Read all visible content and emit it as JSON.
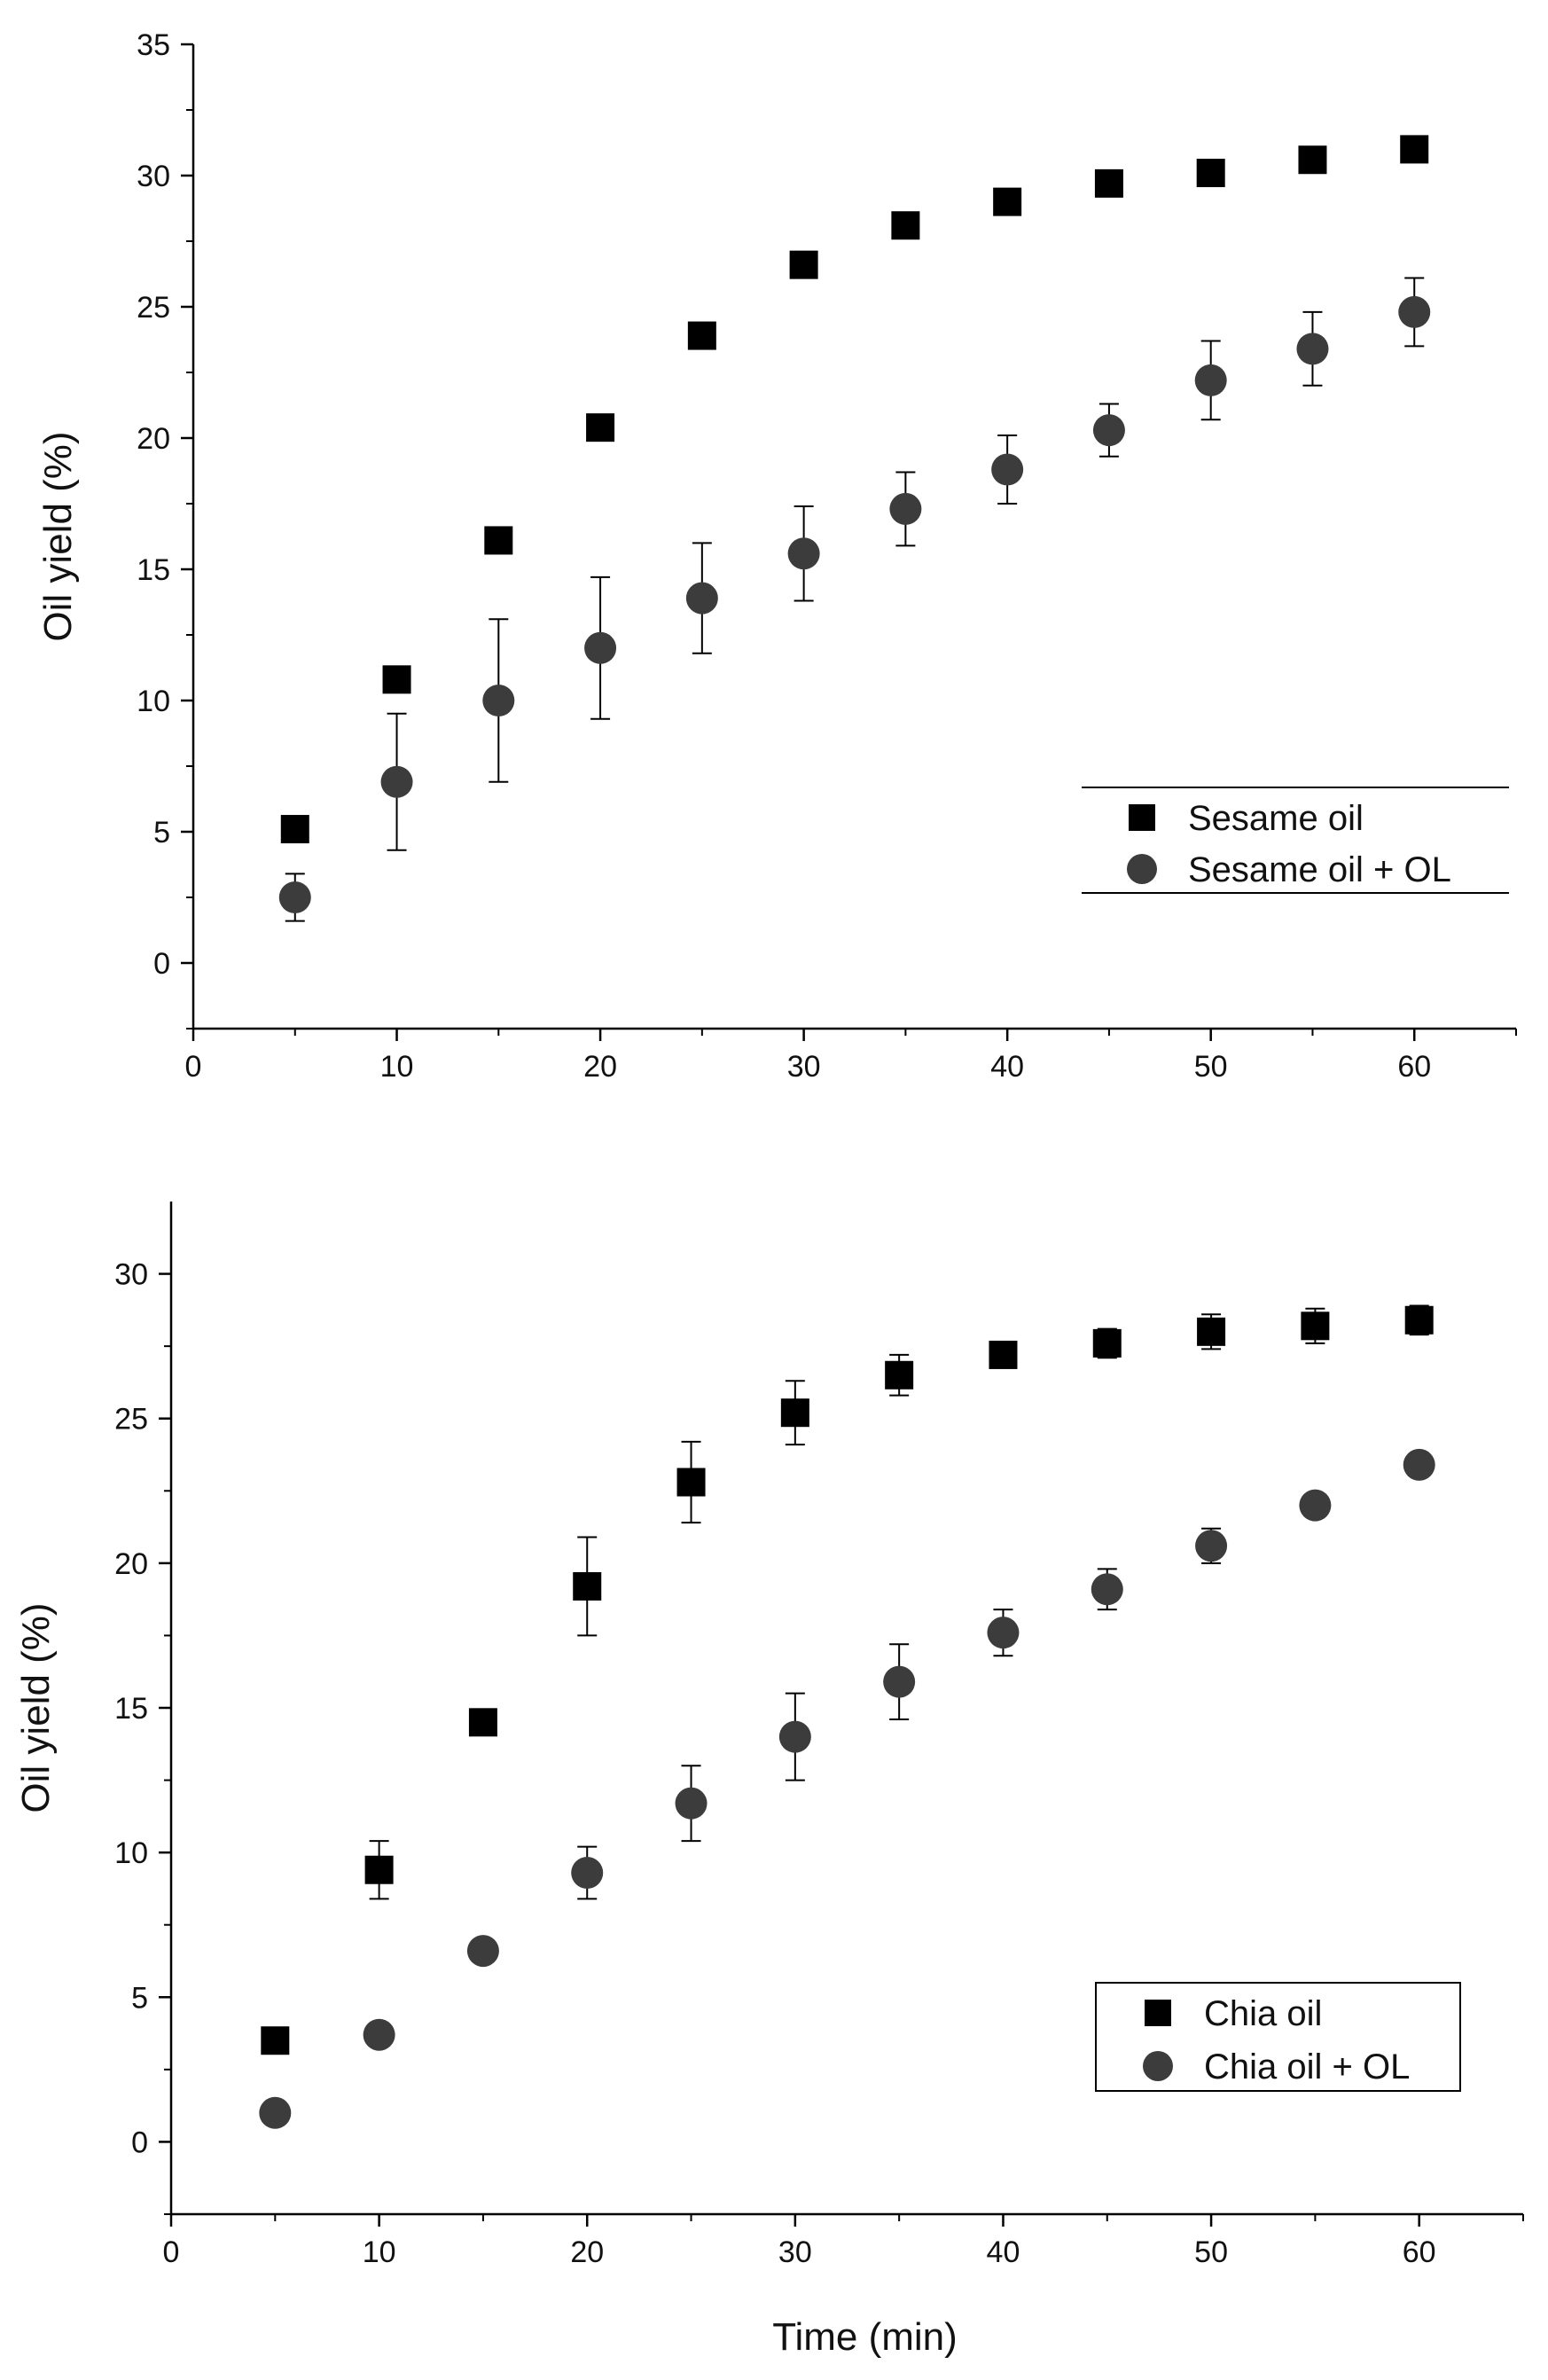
{
  "chart_data": [
    {
      "type": "scatter",
      "title": "",
      "xlabel": "",
      "ylabel": "Oil yield (%)",
      "xlim": [
        0,
        65
      ],
      "ylim": [
        -2.5,
        35
      ],
      "xticks": [
        0,
        10,
        20,
        30,
        40,
        50,
        60
      ],
      "yticks": [
        0,
        5,
        10,
        15,
        20,
        25,
        30,
        35
      ],
      "x": [
        5,
        10,
        15,
        20,
        25,
        30,
        35,
        40,
        45,
        50,
        55,
        60
      ],
      "legend_position": "bottom-right",
      "legend_frame": "lines",
      "series": [
        {
          "name": "Sesame oil",
          "marker": "square",
          "color": "#000000",
          "values": [
            5.1,
            10.8,
            16.1,
            20.4,
            23.9,
            26.6,
            28.1,
            29.0,
            29.7,
            30.1,
            30.6,
            31.0
          ],
          "error": [
            0,
            0,
            0,
            0,
            0,
            0,
            0,
            0,
            0,
            0,
            0,
            0
          ]
        },
        {
          "name": "Sesame oil + OL",
          "marker": "circle",
          "color": "#3c3c3c",
          "values": [
            2.5,
            6.9,
            10.0,
            12.0,
            13.9,
            15.6,
            17.3,
            18.8,
            20.3,
            22.2,
            23.4,
            24.8
          ],
          "error": [
            0.9,
            2.6,
            3.1,
            2.7,
            2.1,
            1.8,
            1.4,
            1.3,
            1.0,
            1.5,
            1.4,
            1.3
          ]
        }
      ]
    },
    {
      "type": "scatter",
      "title": "",
      "xlabel": "Time (min)",
      "ylabel": "Oil yield (%)",
      "xlim": [
        0,
        65
      ],
      "ylim": [
        -2.5,
        32.5
      ],
      "xticks": [
        0,
        10,
        20,
        30,
        40,
        50,
        60
      ],
      "yticks": [
        0,
        5,
        10,
        15,
        20,
        25,
        30
      ],
      "x": [
        5,
        10,
        15,
        20,
        25,
        30,
        35,
        40,
        45,
        50,
        55,
        60
      ],
      "legend_position": "bottom-right",
      "legend_frame": "box",
      "series": [
        {
          "name": "Chia oil",
          "marker": "square",
          "color": "#000000",
          "values": [
            3.5,
            9.4,
            14.5,
            19.2,
            22.8,
            25.2,
            26.5,
            27.2,
            27.6,
            28.0,
            28.2,
            28.4
          ],
          "error": [
            0,
            1.0,
            0,
            1.7,
            1.4,
            1.1,
            0.7,
            0,
            0.5,
            0.6,
            0.6,
            0.5
          ]
        },
        {
          "name": "Chia oil + OL",
          "marker": "circle",
          "color": "#3c3c3c",
          "values": [
            1.0,
            3.7,
            6.6,
            9.3,
            11.7,
            14.0,
            15.9,
            17.6,
            19.1,
            20.6,
            22.0,
            23.4
          ],
          "error": [
            0,
            0,
            0,
            0.9,
            1.3,
            1.5,
            1.3,
            0.8,
            0.7,
            0.6,
            0,
            0
          ]
        }
      ]
    }
  ]
}
